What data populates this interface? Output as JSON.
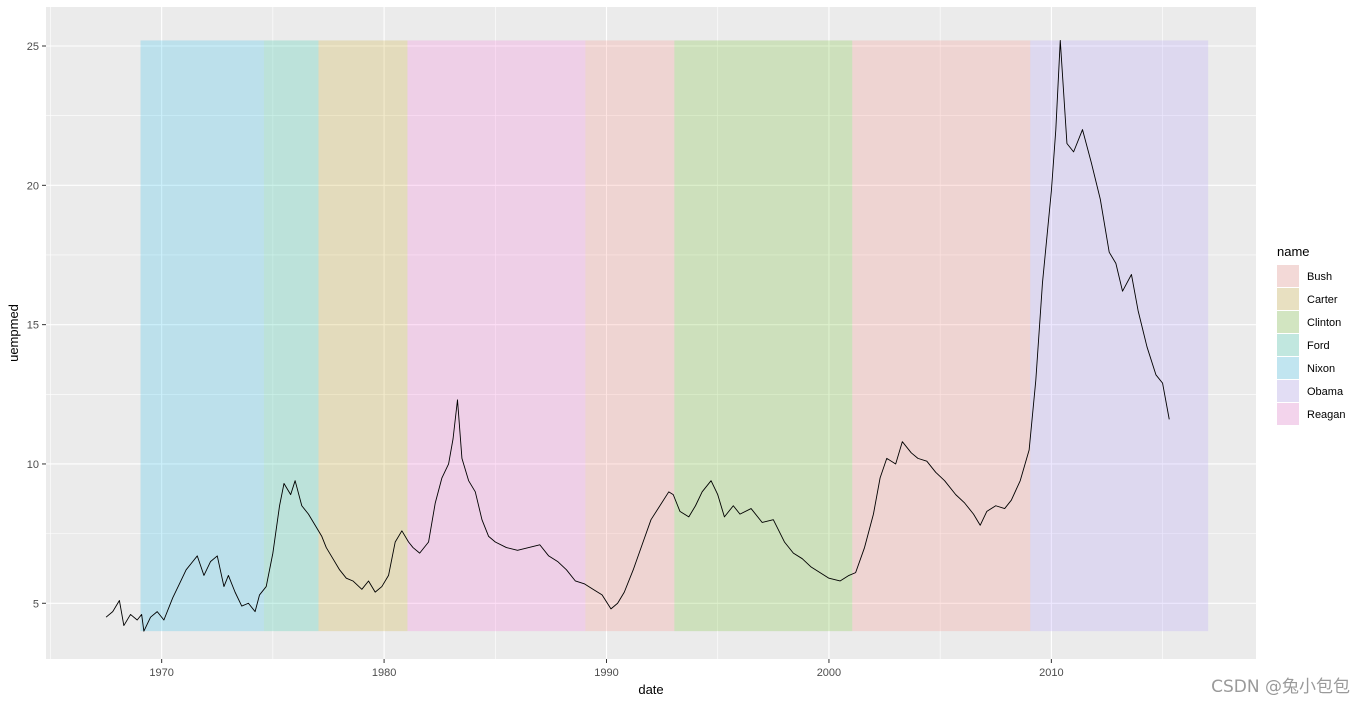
{
  "chart_data": {
    "type": "line",
    "xlabel": "date",
    "ylabel": "uempmed",
    "xlim": [
      1964.8,
      2019.2
    ],
    "ylim": [
      3.0,
      26.4
    ],
    "x_ticks": [
      1970,
      1980,
      1990,
      2000,
      2010
    ],
    "y_ticks": [
      5,
      10,
      15,
      20,
      25
    ],
    "grid": true,
    "legend": {
      "title": "name",
      "placement": "right",
      "entries": [
        {
          "name": "Bush",
          "color": "#F8766D"
        },
        {
          "name": "Carter",
          "color": "#C49A00"
        },
        {
          "name": "Clinton",
          "color": "#53B400"
        },
        {
          "name": "Ford",
          "color": "#00C094"
        },
        {
          "name": "Nixon",
          "color": "#00B6EB"
        },
        {
          "name": "Obama",
          "color": "#A58AFF"
        },
        {
          "name": "Reagan",
          "color": "#FB61D7"
        }
      ]
    },
    "terms": [
      {
        "name": "Nixon",
        "start": 1969.05,
        "end": 1974.6
      },
      {
        "name": "Ford",
        "start": 1974.6,
        "end": 1977.05
      },
      {
        "name": "Carter",
        "start": 1977.05,
        "end": 1981.05
      },
      {
        "name": "Reagan",
        "start": 1981.05,
        "end": 1989.05
      },
      {
        "name": "Bush",
        "start": 1989.05,
        "end": 1993.05
      },
      {
        "name": "Clinton",
        "start": 1993.05,
        "end": 2001.05
      },
      {
        "name": "Bush",
        "start": 2001.05,
        "end": 2009.05
      },
      {
        "name": "Obama",
        "start": 2009.05,
        "end": 2017.05
      }
    ],
    "band_ymin": 4.0,
    "band_ymax": 25.2,
    "series": [
      {
        "points": [
          [
            1967.5,
            4.5
          ],
          [
            1967.8,
            4.7
          ],
          [
            1968.1,
            5.1
          ],
          [
            1968.3,
            4.2
          ],
          [
            1968.6,
            4.6
          ],
          [
            1968.9,
            4.4
          ],
          [
            1969.1,
            4.6
          ],
          [
            1969.2,
            4.0
          ],
          [
            1969.5,
            4.5
          ],
          [
            1969.8,
            4.7
          ],
          [
            1970.1,
            4.4
          ],
          [
            1970.5,
            5.2
          ],
          [
            1970.8,
            5.7
          ],
          [
            1971.1,
            6.2
          ],
          [
            1971.4,
            6.5
          ],
          [
            1971.6,
            6.7
          ],
          [
            1971.9,
            6.0
          ],
          [
            1972.2,
            6.5
          ],
          [
            1972.5,
            6.7
          ],
          [
            1972.8,
            5.6
          ],
          [
            1973.0,
            6.0
          ],
          [
            1973.3,
            5.4
          ],
          [
            1973.6,
            4.9
          ],
          [
            1973.9,
            5.0
          ],
          [
            1974.2,
            4.7
          ],
          [
            1974.4,
            5.3
          ],
          [
            1974.7,
            5.6
          ],
          [
            1975.0,
            6.8
          ],
          [
            1975.3,
            8.5
          ],
          [
            1975.5,
            9.3
          ],
          [
            1975.8,
            8.9
          ],
          [
            1976.0,
            9.4
          ],
          [
            1976.3,
            8.5
          ],
          [
            1976.6,
            8.2
          ],
          [
            1976.9,
            7.8
          ],
          [
            1977.2,
            7.4
          ],
          [
            1977.4,
            7.0
          ],
          [
            1977.7,
            6.6
          ],
          [
            1978.0,
            6.2
          ],
          [
            1978.3,
            5.9
          ],
          [
            1978.6,
            5.8
          ],
          [
            1979.0,
            5.5
          ],
          [
            1979.3,
            5.8
          ],
          [
            1979.6,
            5.4
          ],
          [
            1979.9,
            5.6
          ],
          [
            1980.2,
            6.0
          ],
          [
            1980.5,
            7.2
          ],
          [
            1980.8,
            7.6
          ],
          [
            1981.1,
            7.2
          ],
          [
            1981.3,
            7.0
          ],
          [
            1981.6,
            6.8
          ],
          [
            1982.0,
            7.2
          ],
          [
            1982.3,
            8.6
          ],
          [
            1982.6,
            9.5
          ],
          [
            1982.9,
            10.0
          ],
          [
            1983.1,
            10.9
          ],
          [
            1983.3,
            12.3
          ],
          [
            1983.5,
            10.2
          ],
          [
            1983.8,
            9.4
          ],
          [
            1984.1,
            9.0
          ],
          [
            1984.4,
            8.0
          ],
          [
            1984.7,
            7.4
          ],
          [
            1985.0,
            7.2
          ],
          [
            1985.5,
            7.0
          ],
          [
            1986.0,
            6.9
          ],
          [
            1986.5,
            7.0
          ],
          [
            1987.0,
            7.1
          ],
          [
            1987.4,
            6.7
          ],
          [
            1987.8,
            6.5
          ],
          [
            1988.2,
            6.2
          ],
          [
            1988.6,
            5.8
          ],
          [
            1989.0,
            5.7
          ],
          [
            1989.4,
            5.5
          ],
          [
            1989.8,
            5.3
          ],
          [
            1990.2,
            4.8
          ],
          [
            1990.5,
            5.0
          ],
          [
            1990.8,
            5.4
          ],
          [
            1991.2,
            6.2
          ],
          [
            1991.6,
            7.1
          ],
          [
            1992.0,
            8.0
          ],
          [
            1992.4,
            8.5
          ],
          [
            1992.8,
            9.0
          ],
          [
            1993.0,
            8.9
          ],
          [
            1993.3,
            8.3
          ],
          [
            1993.7,
            8.1
          ],
          [
            1994.0,
            8.5
          ],
          [
            1994.3,
            9.0
          ],
          [
            1994.7,
            9.4
          ],
          [
            1995.0,
            8.9
          ],
          [
            1995.3,
            8.1
          ],
          [
            1995.7,
            8.5
          ],
          [
            1996.0,
            8.2
          ],
          [
            1996.5,
            8.4
          ],
          [
            1997.0,
            7.9
          ],
          [
            1997.5,
            8.0
          ],
          [
            1998.0,
            7.2
          ],
          [
            1998.4,
            6.8
          ],
          [
            1998.8,
            6.6
          ],
          [
            1999.2,
            6.3
          ],
          [
            1999.6,
            6.1
          ],
          [
            2000.0,
            5.9
          ],
          [
            2000.5,
            5.8
          ],
          [
            2000.9,
            6.0
          ],
          [
            2001.2,
            6.1
          ],
          [
            2001.6,
            7.0
          ],
          [
            2002.0,
            8.2
          ],
          [
            2002.3,
            9.5
          ],
          [
            2002.6,
            10.2
          ],
          [
            2003.0,
            10.0
          ],
          [
            2003.3,
            10.8
          ],
          [
            2003.7,
            10.4
          ],
          [
            2004.0,
            10.2
          ],
          [
            2004.4,
            10.1
          ],
          [
            2004.8,
            9.7
          ],
          [
            2005.2,
            9.4
          ],
          [
            2005.7,
            8.9
          ],
          [
            2006.1,
            8.6
          ],
          [
            2006.5,
            8.2
          ],
          [
            2006.8,
            7.8
          ],
          [
            2007.1,
            8.3
          ],
          [
            2007.5,
            8.5
          ],
          [
            2007.9,
            8.4
          ],
          [
            2008.2,
            8.7
          ],
          [
            2008.6,
            9.4
          ],
          [
            2009.0,
            10.5
          ],
          [
            2009.3,
            13.0
          ],
          [
            2009.6,
            16.5
          ],
          [
            2010.0,
            19.8
          ],
          [
            2010.2,
            22.0
          ],
          [
            2010.4,
            25.2
          ],
          [
            2010.7,
            21.5
          ],
          [
            2011.0,
            21.2
          ],
          [
            2011.4,
            22.0
          ],
          [
            2011.8,
            20.8
          ],
          [
            2012.2,
            19.5
          ],
          [
            2012.6,
            17.6
          ],
          [
            2012.9,
            17.2
          ],
          [
            2013.2,
            16.2
          ],
          [
            2013.6,
            16.8
          ],
          [
            2013.9,
            15.5
          ],
          [
            2014.3,
            14.2
          ],
          [
            2014.7,
            13.2
          ],
          [
            2015.0,
            12.9
          ],
          [
            2015.3,
            11.6
          ]
        ]
      }
    ]
  },
  "watermark": "CSDN @兔小包包"
}
